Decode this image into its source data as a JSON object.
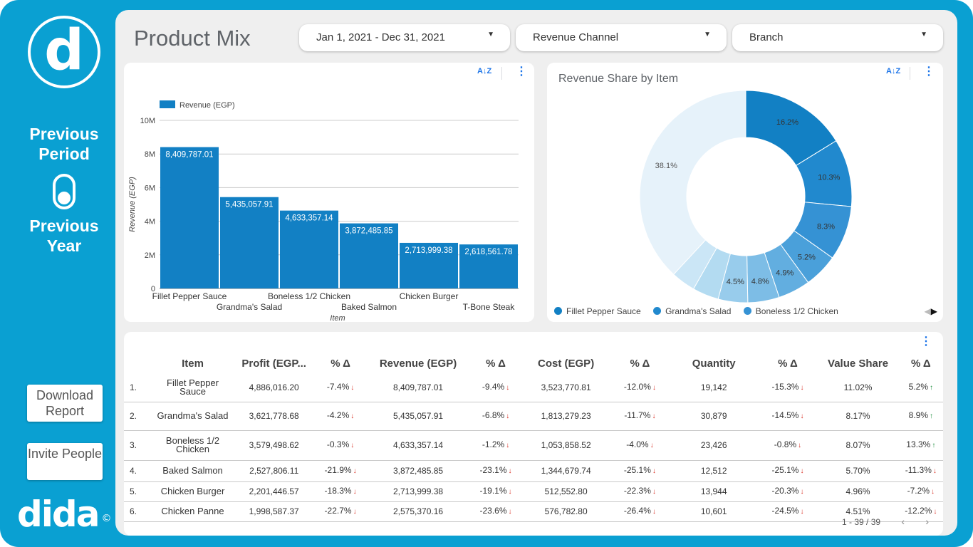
{
  "sidebar": {
    "logo_letter": "d",
    "previous_period": "Previous Period",
    "previous_year": "Previous Year",
    "download_report": "Download Report",
    "invite_people": "Invite People",
    "brand": "dida",
    "brand_symbol": "©"
  },
  "header": {
    "title": "Product Mix",
    "filters": [
      {
        "label": "Jan 1, 2021 - Dec 31, 2021"
      },
      {
        "label": "Revenue Channel"
      },
      {
        "label": "Branch"
      }
    ]
  },
  "bar_chart": {
    "sort_icon": "A↓Z",
    "kebab": "⋮"
  },
  "donut_chart": {
    "sort_icon": "A↓Z",
    "kebab": "⋮"
  },
  "chart_data": [
    {
      "type": "bar",
      "title": "",
      "legend": [
        "Revenue (EGP)"
      ],
      "xlabel": "Item",
      "ylabel": "Revenue (EGP)",
      "ylim": [
        0,
        10000000
      ],
      "yticks": [
        "0",
        "2M",
        "4M",
        "6M",
        "8M",
        "10M"
      ],
      "categories": [
        "Fillet Pepper Sauce",
        "Grandma's Salad",
        "Boneless 1/2 Chicken",
        "Baked Salmon",
        "Chicken Burger",
        "T-Bone Steak"
      ],
      "values": [
        8409787.01,
        5435057.91,
        4633357.14,
        3872485.85,
        2713999.38,
        2618561.78
      ],
      "data_labels": [
        "8,409,787.01",
        "5,435,057.91",
        "4,633,357.14",
        "3,872,485.85",
        "2,713,999.38",
        "2,618,561.78"
      ],
      "series_color": "#1280c4"
    },
    {
      "type": "pie",
      "title": "Revenue Share by Item",
      "donut": true,
      "slices": [
        {
          "label": "16.2%",
          "value": 16.2,
          "color": "#1280c4",
          "label_color": "#333333"
        },
        {
          "label": "10.3%",
          "value": 10.3,
          "color": "#2189ce",
          "label_color": "#333333"
        },
        {
          "label": "8.3%",
          "value": 8.3,
          "color": "#3592d4",
          "label_color": "#333333"
        },
        {
          "label": "5.2%",
          "value": 5.2,
          "color": "#4aa0da",
          "label_color": "#333333"
        },
        {
          "label": "4.9%",
          "value": 4.9,
          "color": "#62aee0",
          "label_color": "#333333"
        },
        {
          "label": "4.8%",
          "value": 4.8,
          "color": "#7dbde6",
          "label_color": "#333333"
        },
        {
          "label": "4.5%",
          "value": 4.5,
          "color": "#98ccec",
          "label_color": "#333333"
        },
        {
          "label": "",
          "value": 4.0,
          "color": "#b3dbf1",
          "label_color": "#333333"
        },
        {
          "label": "",
          "value": 3.7,
          "color": "#cbe6f6",
          "label_color": "#333333"
        },
        {
          "label": "38.1%",
          "value": 38.1,
          "color": "#e6f2fa",
          "label_color": "#555555"
        }
      ],
      "legend": [
        {
          "label": "Fillet Pepper Sauce",
          "color": "#1280c4"
        },
        {
          "label": "Grandma's Salad",
          "color": "#2189ce"
        },
        {
          "label": "Boneless 1/2 Chicken",
          "color": "#3592d4"
        }
      ],
      "legend_pager": {
        "prev": "◀",
        "next": "▶"
      }
    }
  ],
  "table": {
    "kebab": "⋮",
    "columns": [
      "",
      "Item",
      "Profit (EGP...",
      "% Δ",
      "Revenue (EGP)",
      "% Δ",
      "Cost (EGP)",
      "% Δ",
      "Quantity",
      "% Δ",
      "Value Share",
      "% Δ"
    ],
    "rows": [
      {
        "n": "1.",
        "item": "Fillet Pepper Sauce",
        "profit": "4,886,016.20",
        "p_d": "-7.4%",
        "p_up": false,
        "revenue": "8,409,787.01",
        "r_d": "-9.4%",
        "r_up": false,
        "cost": "3,523,770.81",
        "c_d": "-12.0%",
        "c_up": false,
        "qty": "19,142",
        "q_d": "-15.3%",
        "q_up": false,
        "share": "11.02%",
        "s_d": "5.2%",
        "s_up": true
      },
      {
        "n": "2.",
        "item": "Grandma's Salad",
        "profit": "3,621,778.68",
        "p_d": "-4.2%",
        "p_up": false,
        "revenue": "5,435,057.91",
        "r_d": "-6.8%",
        "r_up": false,
        "cost": "1,813,279.23",
        "c_d": "-11.7%",
        "c_up": false,
        "qty": "30,879",
        "q_d": "-14.5%",
        "q_up": false,
        "share": "8.17%",
        "s_d": "8.9%",
        "s_up": true
      },
      {
        "n": "3.",
        "item": "Boneless 1/2 Chicken",
        "profit": "3,579,498.62",
        "p_d": "-0.3%",
        "p_up": false,
        "revenue": "4,633,357.14",
        "r_d": "-1.2%",
        "r_up": false,
        "cost": "1,053,858.52",
        "c_d": "-4.0%",
        "c_up": false,
        "qty": "23,426",
        "q_d": "-0.8%",
        "q_up": false,
        "share": "8.07%",
        "s_d": "13.3%",
        "s_up": true
      },
      {
        "n": "4.",
        "item": "Baked Salmon",
        "profit": "2,527,806.11",
        "p_d": "-21.9%",
        "p_up": false,
        "revenue": "3,872,485.85",
        "r_d": "-23.1%",
        "r_up": false,
        "cost": "1,344,679.74",
        "c_d": "-25.1%",
        "c_up": false,
        "qty": "12,512",
        "q_d": "-25.1%",
        "q_up": false,
        "share": "5.70%",
        "s_d": "-11.3%",
        "s_up": false
      },
      {
        "n": "5.",
        "item": "Chicken Burger",
        "profit": "2,201,446.57",
        "p_d": "-18.3%",
        "p_up": false,
        "revenue": "2,713,999.38",
        "r_d": "-19.1%",
        "r_up": false,
        "cost": "512,552.80",
        "c_d": "-22.3%",
        "c_up": false,
        "qty": "13,944",
        "q_d": "-20.3%",
        "q_up": false,
        "share": "4.96%",
        "s_d": "-7.2%",
        "s_up": false
      },
      {
        "n": "6.",
        "item": "Chicken Panne",
        "profit": "1,998,587.37",
        "p_d": "-22.7%",
        "p_up": false,
        "revenue": "2,575,370.16",
        "r_d": "-23.6%",
        "r_up": false,
        "cost": "576,782.80",
        "c_d": "-26.4%",
        "c_up": false,
        "qty": "10,601",
        "q_d": "-24.5%",
        "q_up": false,
        "share": "4.51%",
        "s_d": "-12.2%",
        "s_up": false
      }
    ],
    "pagination": "1 - 39 / 39",
    "prev": "‹",
    "next": "›"
  },
  "colors": {
    "brand_blue": "#0aa0d2",
    "bar_blue": "#1280c4",
    "icon_blue": "#1a73e8",
    "down_red": "#d93025",
    "up_green": "#1e8e3e"
  }
}
